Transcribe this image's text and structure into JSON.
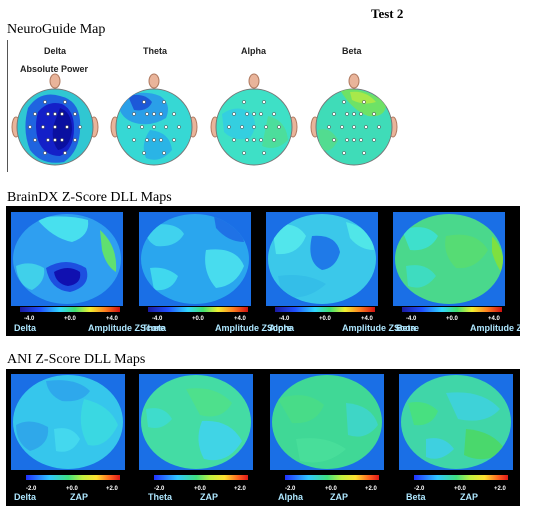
{
  "header": {
    "title": "Test 2"
  },
  "neuroguide": {
    "title": "NeuroGuide Map",
    "bands": [
      "Delta",
      "Theta",
      "Alpha",
      "Beta"
    ],
    "power_label": "Absolute Power"
  },
  "braindx": {
    "title": "BrainDX Z-Score DLL Maps",
    "bands": [
      "Delta",
      "Theta",
      "Alpha",
      "Beta"
    ],
    "scale_min": "-4.0",
    "scale_mid": "+0.0",
    "scale_max": "+4.0",
    "unit": "Amplitude ZScore"
  },
  "ani": {
    "title": "ANI Z-Score DLL Maps",
    "bands": [
      "Delta",
      "Theta",
      "Alpha",
      "Beta"
    ],
    "scale_min": "-2.0",
    "scale_mid": "+0.0",
    "scale_max": "+2.0",
    "unit": "ZAP"
  },
  "colors": {
    "panel_bg": "#000000",
    "map_frame": "#1e6fe0",
    "low": "#0a1aa8",
    "mid": "#2ad6e0",
    "high": "#48e060"
  }
}
